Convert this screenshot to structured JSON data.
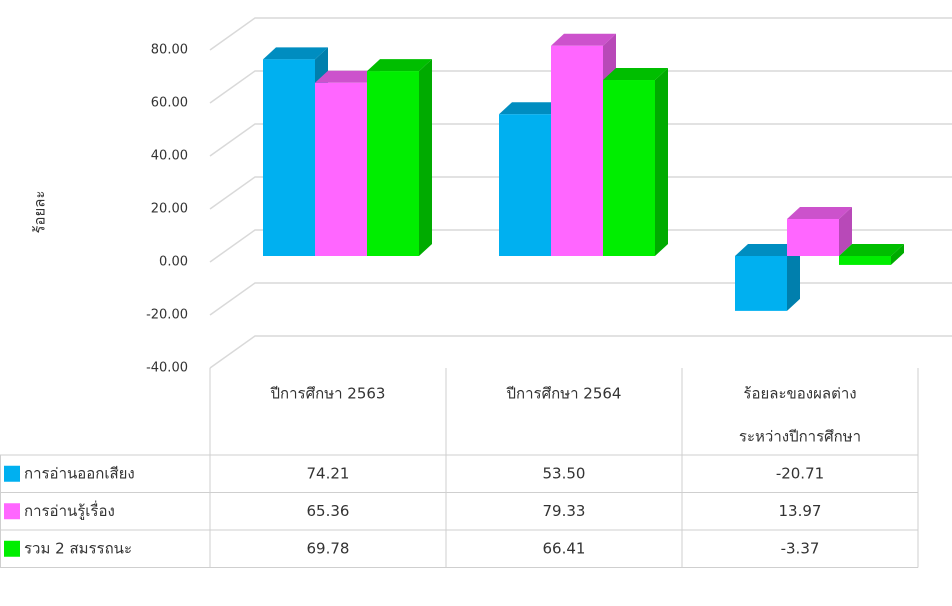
{
  "chart_data": {
    "type": "bar3d",
    "y_label": "ร้อยละ",
    "categories": [
      [
        "ปีการศึกษา  2563"
      ],
      [
        "ปีการศึกษา  2564"
      ],
      [
        "ร้อยละของผลต่าง",
        "ระหว่างปีการศึกษา"
      ]
    ],
    "series": [
      {
        "name": "การอ่านออกเสียง",
        "color": "#00b0f0",
        "values": [
          74.21,
          53.5,
          -20.71
        ],
        "value_labels": [
          "74.21",
          "53.50",
          "-20.71"
        ]
      },
      {
        "name": "การอ่านรู้เรื่อง",
        "color": "#ff66ff",
        "values": [
          65.36,
          79.33,
          13.97
        ],
        "value_labels": [
          "65.36",
          "79.33",
          "13.97"
        ]
      },
      {
        "name": "รวม 2 สมรรถนะ",
        "color": "#00ee00",
        "values": [
          69.78,
          66.41,
          -3.37
        ],
        "value_labels": [
          "69.78",
          "66.41",
          "-3.37"
        ]
      }
    ],
    "ylim": [
      -40,
      80
    ],
    "yticks": [
      {
        "value": -40,
        "label": "-40.00"
      },
      {
        "value": -20,
        "label": "-20.00"
      },
      {
        "value": 0,
        "label": "0.00"
      },
      {
        "value": 20,
        "label": "20.00"
      },
      {
        "value": 40,
        "label": "40.00"
      },
      {
        "value": 60,
        "label": "60.00"
      },
      {
        "value": 80,
        "label": "80.00"
      }
    ],
    "grid": true
  }
}
